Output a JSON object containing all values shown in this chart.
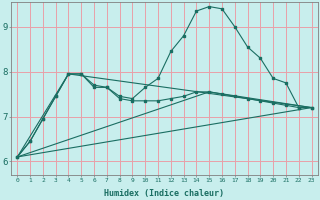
{
  "xlabel": "Humidex (Indice chaleur)",
  "bg_color": "#c8eeed",
  "grid_color": "#e8a0a8",
  "line_color": "#1a6e62",
  "xlim": [
    -0.5,
    23.5
  ],
  "ylim": [
    5.7,
    9.55
  ],
  "xticks": [
    0,
    1,
    2,
    3,
    4,
    5,
    6,
    7,
    8,
    9,
    10,
    11,
    12,
    13,
    14,
    15,
    16,
    17,
    18,
    19,
    20,
    21,
    22,
    23
  ],
  "yticks": [
    6,
    7,
    8,
    9
  ],
  "series_flat_x": [
    0,
    1,
    2,
    3,
    4,
    5,
    6,
    7,
    8,
    9,
    10,
    11,
    12,
    13,
    14,
    15,
    16,
    17,
    18,
    19,
    20,
    21,
    22,
    23
  ],
  "series_flat_y": [
    6.1,
    6.45,
    6.95,
    7.45,
    7.95,
    7.95,
    7.7,
    7.65,
    7.4,
    7.35,
    7.35,
    7.35,
    7.4,
    7.45,
    7.55,
    7.55,
    7.5,
    7.45,
    7.4,
    7.35,
    7.3,
    7.25,
    7.2,
    7.2
  ],
  "series_peak_x": [
    0,
    1,
    2,
    3,
    4,
    5,
    6,
    7,
    8,
    9,
    10,
    11,
    12,
    13,
    14,
    15,
    16,
    17,
    18,
    19,
    20,
    21,
    22,
    23
  ],
  "series_peak_y": [
    6.1,
    6.45,
    6.95,
    7.45,
    7.95,
    7.95,
    7.65,
    7.65,
    7.45,
    7.4,
    7.65,
    7.85,
    8.45,
    8.8,
    9.35,
    9.45,
    9.4,
    9.0,
    8.55,
    8.3,
    7.85,
    7.75,
    7.2,
    7.2
  ],
  "line1_x": [
    0,
    23
  ],
  "line1_y": [
    6.1,
    7.2
  ],
  "line2_x": [
    0,
    15,
    23
  ],
  "line2_y": [
    6.1,
    7.55,
    7.2
  ],
  "line3_x": [
    0,
    4,
    23
  ],
  "line3_y": [
    6.1,
    7.95,
    7.2
  ]
}
